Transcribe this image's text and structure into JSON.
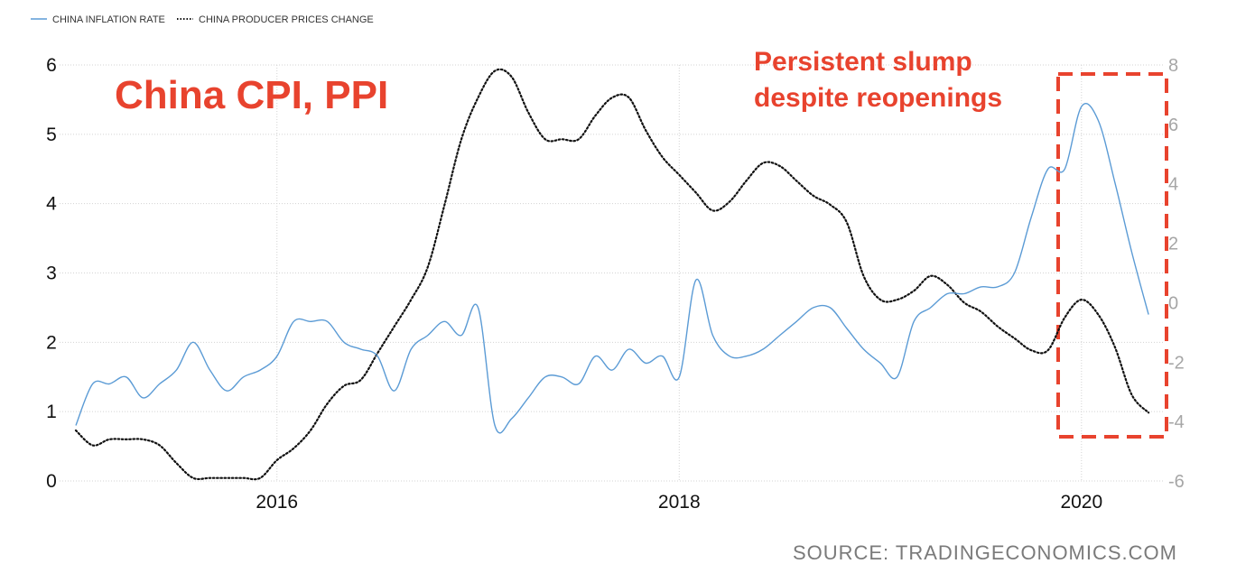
{
  "chart_data": {
    "type": "line",
    "title": "China CPI, PPI",
    "annotation": "Persistent slump despite reopenings",
    "annotation_lines": [
      "Persistent slump",
      "despite reopenings"
    ],
    "source": "SOURCE: TRADINGECONOMICS.COM",
    "x_ticks": [
      "2016",
      "2018",
      "2020"
    ],
    "y_left": {
      "range": [
        0,
        6
      ],
      "ticks": [
        "0",
        "1",
        "2",
        "3",
        "4",
        "5",
        "6"
      ]
    },
    "y_right": {
      "range": [
        -6,
        8
      ],
      "ticks": [
        "-6",
        "-4",
        "-2",
        "0",
        "2",
        "4",
        "6",
        "8"
      ]
    },
    "grid": true,
    "legend_position": "top-left",
    "colors": {
      "cpi": "#5b9bd5",
      "ppi": "#111111",
      "annotation": "#e8432e"
    },
    "series": [
      {
        "name": "CHINA INFLATION RATE",
        "axis": "left",
        "style": "solid",
        "x": [
          "2015-01",
          "2015-02",
          "2015-03",
          "2015-04",
          "2015-05",
          "2015-06",
          "2015-07",
          "2015-08",
          "2015-09",
          "2015-10",
          "2015-11",
          "2015-12",
          "2016-01",
          "2016-02",
          "2016-03",
          "2016-04",
          "2016-05",
          "2016-06",
          "2016-07",
          "2016-08",
          "2016-09",
          "2016-10",
          "2016-11",
          "2016-12",
          "2017-01",
          "2017-02",
          "2017-03",
          "2017-04",
          "2017-05",
          "2017-06",
          "2017-07",
          "2017-08",
          "2017-09",
          "2017-10",
          "2017-11",
          "2017-12",
          "2018-01",
          "2018-02",
          "2018-03",
          "2018-04",
          "2018-05",
          "2018-06",
          "2018-07",
          "2018-08",
          "2018-09",
          "2018-10",
          "2018-11",
          "2018-12",
          "2019-01",
          "2019-02",
          "2019-03",
          "2019-04",
          "2019-05",
          "2019-06",
          "2019-07",
          "2019-08",
          "2019-09",
          "2019-10",
          "2019-11",
          "2019-12",
          "2020-01",
          "2020-02",
          "2020-03",
          "2020-04",
          "2020-05"
        ],
        "values": [
          0.8,
          1.4,
          1.4,
          1.5,
          1.2,
          1.4,
          1.6,
          2.0,
          1.6,
          1.3,
          1.5,
          1.6,
          1.8,
          2.3,
          2.3,
          2.3,
          2.0,
          1.9,
          1.8,
          1.3,
          1.9,
          2.1,
          2.3,
          2.1,
          2.5,
          0.8,
          0.9,
          1.2,
          1.5,
          1.5,
          1.4,
          1.8,
          1.6,
          1.9,
          1.7,
          1.8,
          1.5,
          2.9,
          2.1,
          1.8,
          1.8,
          1.9,
          2.1,
          2.3,
          2.5,
          2.5,
          2.2,
          1.9,
          1.7,
          1.5,
          2.3,
          2.5,
          2.7,
          2.7,
          2.8,
          2.8,
          3.0,
          3.8,
          4.5,
          4.5,
          5.4,
          5.2,
          4.3,
          3.3,
          2.4
        ]
      },
      {
        "name": "CHINA PRODUCER PRICES CHANGE",
        "axis": "right",
        "style": "dotted",
        "x": [
          "2015-01",
          "2015-02",
          "2015-03",
          "2015-04",
          "2015-05",
          "2015-06",
          "2015-07",
          "2015-08",
          "2015-09",
          "2015-10",
          "2015-11",
          "2015-12",
          "2016-01",
          "2016-02",
          "2016-03",
          "2016-04",
          "2016-05",
          "2016-06",
          "2016-07",
          "2016-08",
          "2016-09",
          "2016-10",
          "2016-11",
          "2016-12",
          "2017-01",
          "2017-02",
          "2017-03",
          "2017-04",
          "2017-05",
          "2017-06",
          "2017-07",
          "2017-08",
          "2017-09",
          "2017-10",
          "2017-11",
          "2017-12",
          "2018-01",
          "2018-02",
          "2018-03",
          "2018-04",
          "2018-05",
          "2018-06",
          "2018-07",
          "2018-08",
          "2018-09",
          "2018-10",
          "2018-11",
          "2018-12",
          "2019-01",
          "2019-02",
          "2019-03",
          "2019-04",
          "2019-05",
          "2019-06",
          "2019-07",
          "2019-08",
          "2019-09",
          "2019-10",
          "2019-11",
          "2019-12",
          "2020-01",
          "2020-02",
          "2020-03",
          "2020-04",
          "2020-05"
        ],
        "values": [
          -4.3,
          -4.8,
          -4.6,
          -4.6,
          -4.6,
          -4.8,
          -5.4,
          -5.9,
          -5.9,
          -5.9,
          -5.9,
          -5.9,
          -5.3,
          -4.9,
          -4.3,
          -3.4,
          -2.8,
          -2.6,
          -1.7,
          -0.8,
          0.1,
          1.2,
          3.3,
          5.5,
          6.9,
          7.8,
          7.6,
          6.4,
          5.5,
          5.5,
          5.5,
          6.3,
          6.9,
          6.9,
          5.8,
          4.9,
          4.3,
          3.7,
          3.1,
          3.4,
          4.1,
          4.7,
          4.6,
          4.1,
          3.6,
          3.3,
          2.7,
          0.9,
          0.1,
          0.1,
          0.4,
          0.9,
          0.6,
          0.0,
          -0.3,
          -0.8,
          -1.2,
          -1.6,
          -1.6,
          -0.5,
          0.1,
          -0.4,
          -1.5,
          -3.1,
          -3.7
        ]
      }
    ]
  }
}
